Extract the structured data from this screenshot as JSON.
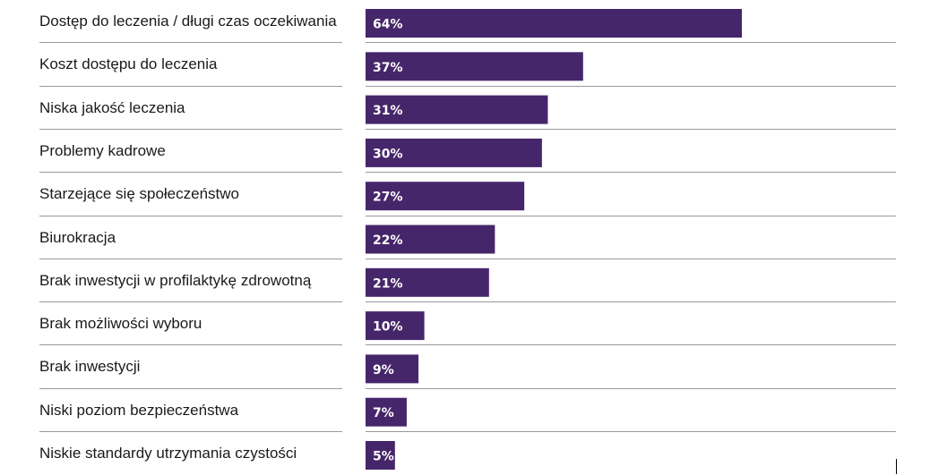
{
  "chart_data": {
    "type": "bar",
    "orientation": "horizontal",
    "categories": [
      "Dostęp do leczenia / długi czas oczekiwania",
      "Koszt dostępu do leczenia",
      "Niska jakość leczenia",
      "Problemy kadrowe",
      "Starzejące się społeczeństwo",
      "Biurokracja",
      "Brak inwestycji w profilaktykę zdrowotną",
      "Brak możliwości wyboru",
      "Brak inwestycji",
      "Niski poziom bezpieczeństwa",
      "Niskie standardy utrzymania czystości"
    ],
    "values": [
      64,
      37,
      31,
      30,
      27,
      22,
      21,
      10,
      9,
      7,
      5
    ],
    "value_labels": [
      "64%",
      "37%",
      "31%",
      "30%",
      "27%",
      "22%",
      "21%",
      "10%",
      "9%",
      "7%",
      "5%"
    ],
    "xlim": [
      0,
      90
    ],
    "grid": false,
    "colors": {
      "bar": "#46266A",
      "bar_label": "#FFFFFF",
      "separator": "#9A9A9A",
      "category_text": "#1A1A1A"
    }
  }
}
